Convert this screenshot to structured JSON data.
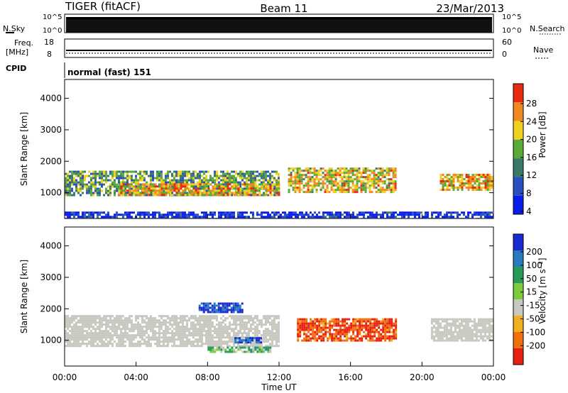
{
  "header": {
    "station": "TIGER (fitACF)",
    "beam": "Beam 11",
    "date": "23/Mar/2013"
  },
  "top_panels": {
    "nsky_label": "N.Sky",
    "nsearch_label": "N.Search",
    "nsky_ticks": [
      "10^5",
      "10^0"
    ],
    "nsearch_ticks": [
      "10^5",
      "10^0"
    ],
    "freq_label": "Freq.",
    "freq_unit": "[MHz]",
    "freq_ticks": [
      "18",
      "8"
    ],
    "nave_label": "Nave",
    "nave_ticks": [
      "60",
      "0"
    ],
    "cpid_label": "CPID",
    "cpid_value": "normal (fast) 151"
  },
  "chart_data": [
    {
      "type": "heatmap",
      "name": "Power",
      "xlabel": "",
      "ylabel": "Slant Range [km]",
      "x_range_hours": [
        0,
        24
      ],
      "ylim": [
        180,
        4600
      ],
      "y_ticks": [
        "1000",
        "2000",
        "3000",
        "4000"
      ],
      "colorbar_label": "Power [dB]",
      "colorbar_ticks": [
        "4",
        "8",
        "12",
        "16",
        "20",
        "24",
        "28"
      ],
      "colorbar_colors": [
        "#0a1eea",
        "#2a4fc0",
        "#3a7a6a",
        "#5aaa3a",
        "#f0d020",
        "#f08a20",
        "#e82a10"
      ],
      "regions": [
        {
          "t0": 0,
          "t1": 12,
          "r0": 900,
          "r1": 1700,
          "level": 16
        },
        {
          "t0": 3,
          "t1": 12,
          "r0": 900,
          "r1": 1300,
          "level": 24
        },
        {
          "t0": 12.5,
          "t1": 18.5,
          "r0": 1000,
          "r1": 1800,
          "level": 22
        },
        {
          "t0": 21,
          "t1": 24,
          "r0": 1100,
          "r1": 1600,
          "level": 24
        },
        {
          "t0": 0,
          "t1": 24,
          "r0": 180,
          "r1": 400,
          "level": 6
        }
      ]
    },
    {
      "type": "heatmap",
      "name": "Velocity",
      "xlabel": "Time UT",
      "ylabel": "Slant Range [km]",
      "x_range_hours": [
        0,
        24
      ],
      "x_ticks": [
        "00:00",
        "04:00",
        "08:00",
        "12:00",
        "16:00",
        "20:00",
        "00:00"
      ],
      "ylim": [
        180,
        4600
      ],
      "y_ticks": [
        "1000",
        "2000",
        "3000",
        "4000"
      ],
      "colorbar_label": "Velocity [m s⁻¹]",
      "colorbar_ticks": [
        "200",
        "100",
        "50",
        "15",
        "-15",
        "-50",
        "-100",
        "-200"
      ],
      "colorbar_colors": [
        "#1a2ad0",
        "#2a7ac0",
        "#2a9a5a",
        "#7acc3a",
        "#c8c8c0",
        "#f0b020",
        "#f07010",
        "#e82010"
      ],
      "regions": [
        {
          "t0": 0,
          "t1": 12,
          "r0": 800,
          "r1": 1800,
          "velocity": 0
        },
        {
          "t0": 13,
          "t1": 18.5,
          "r0": 1000,
          "r1": 1700,
          "velocity": -100
        },
        {
          "t0": 20.5,
          "t1": 24,
          "r0": 1000,
          "r1": 1700,
          "velocity": 0
        },
        {
          "t0": 9.5,
          "t1": 11,
          "r0": 900,
          "r1": 1100,
          "velocity": 200
        },
        {
          "t0": 7.5,
          "t1": 10,
          "r0": 1900,
          "r1": 2200,
          "velocity": 200
        },
        {
          "t0": 8,
          "t1": 11.5,
          "r0": 600,
          "r1": 800,
          "velocity": 50
        }
      ]
    }
  ]
}
